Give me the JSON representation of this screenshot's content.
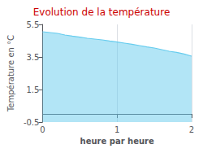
{
  "chart_data": {
    "type": "area",
    "title": "Evolution de la température",
    "xlabel": "heure par heure",
    "ylabel": "Température en °C",
    "x": [
      0.0,
      0.1,
      0.2,
      0.3,
      0.4,
      0.5,
      0.6,
      0.7,
      0.8,
      0.9,
      1.0,
      1.1,
      1.2,
      1.3,
      1.4,
      1.5,
      1.6,
      1.7,
      1.8,
      1.9,
      2.0
    ],
    "values": [
      5.05,
      5.0,
      4.95,
      4.85,
      4.78,
      4.72,
      4.65,
      4.6,
      4.55,
      4.48,
      4.42,
      4.35,
      4.28,
      4.2,
      4.12,
      4.05,
      3.95,
      3.85,
      3.78,
      3.68,
      3.55
    ],
    "color": "#66ccee",
    "xlim": [
      0,
      2
    ],
    "ylim": [
      -0.5,
      5.5
    ],
    "xticks": [
      0,
      1,
      2
    ],
    "yticks": [
      -0.5,
      1.5,
      3.5,
      5.5
    ],
    "grid": "x"
  }
}
